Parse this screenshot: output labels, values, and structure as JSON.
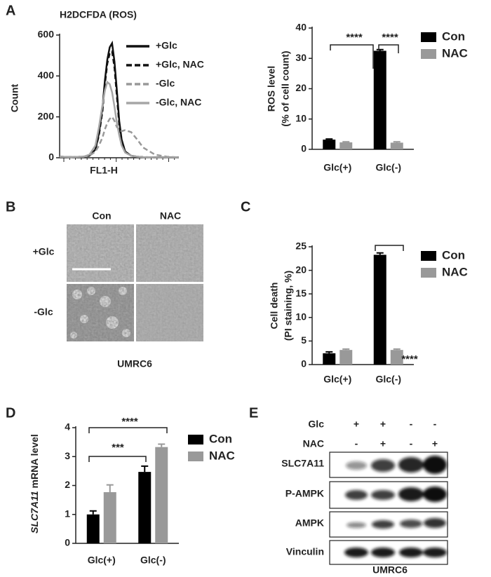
{
  "panel_labels": [
    "A",
    "B",
    "C",
    "D",
    "E"
  ],
  "chart_data": [
    {
      "type": "line",
      "title": "H2DCFDA (ROS)",
      "xlabel": "FL1-H",
      "ylabel": "Count",
      "xlim": [
        0,
        100
      ],
      "ylim": [
        0,
        600
      ],
      "yticks": [
        0,
        200,
        400,
        600
      ],
      "x": [
        0,
        10,
        20,
        25,
        30,
        33,
        36,
        38,
        40,
        42,
        44,
        46,
        48,
        50,
        52,
        55,
        60,
        65,
        70,
        80,
        90,
        100
      ],
      "series": [
        {
          "name": "+Glc",
          "color": "#111111",
          "dash": false,
          "values": [
            5,
            3,
            5,
            10,
            40,
            120,
            250,
            380,
            480,
            540,
            560,
            470,
            330,
            180,
            90,
            30,
            10,
            5,
            3,
            2,
            2,
            2
          ]
        },
        {
          "name": "+Glc, NAC",
          "color": "#111111",
          "dash": true,
          "values": [
            5,
            3,
            5,
            10,
            40,
            110,
            230,
            360,
            460,
            510,
            520,
            440,
            300,
            160,
            80,
            30,
            10,
            5,
            3,
            2,
            2,
            2
          ]
        },
        {
          "name": "-Glc",
          "color": "#999999",
          "dash": true,
          "values": [
            5,
            3,
            5,
            10,
            30,
            60,
            100,
            140,
            170,
            190,
            200,
            180,
            150,
            140,
            130,
            135,
            125,
            90,
            50,
            15,
            5,
            2
          ]
        },
        {
          "name": "-Glc, NAC",
          "color": "#a6a6a6",
          "dash": false,
          "values": [
            5,
            3,
            5,
            15,
            60,
            150,
            260,
            330,
            370,
            360,
            320,
            250,
            170,
            110,
            60,
            25,
            10,
            5,
            3,
            2,
            2,
            2
          ]
        }
      ],
      "legend": "inside-right"
    },
    {
      "type": "bar",
      "ylabel": [
        "ROS level",
        "(% of cell count)"
      ],
      "categories": [
        "Glc(+)",
        "Glc(-)"
      ],
      "ylim": [
        0,
        40
      ],
      "yticks": [
        0,
        10,
        20,
        30,
        40
      ],
      "series": [
        {
          "name": "Con",
          "color": "#000000",
          "values": [
            3.2,
            32.5
          ],
          "errors": [
            0.2,
            0.4
          ]
        },
        {
          "name": "NAC",
          "color": "#999999",
          "values": [
            2.3,
            2.2
          ],
          "errors": [
            0.2,
            0.3
          ]
        }
      ],
      "annotations": [
        "****",
        "****"
      ],
      "legend": "right"
    },
    {
      "type": "bar",
      "ylabel": [
        "Cell death",
        "(PI staining, %)"
      ],
      "categories": [
        "Glc(+)",
        "Glc(-)"
      ],
      "ylim": [
        0,
        25
      ],
      "yticks": [
        0,
        5,
        10,
        15,
        20,
        25
      ],
      "series": [
        {
          "name": "Con",
          "color": "#000000",
          "values": [
            2.4,
            23.3
          ],
          "errors": [
            0.3,
            0.4
          ]
        },
        {
          "name": "NAC",
          "color": "#999999",
          "values": [
            3.1,
            3.1
          ],
          "errors": [
            0.2,
            0.2
          ]
        }
      ],
      "annotations": [
        "****"
      ],
      "legend": "right"
    },
    {
      "type": "bar",
      "ylabel": [
        "SLC7A11",
        "mRNA level"
      ],
      "categories": [
        "Glc(+)",
        "Glc(-)"
      ],
      "ylim": [
        0,
        4
      ],
      "yticks": [
        0,
        1,
        2,
        3,
        4
      ],
      "series": [
        {
          "name": "Con",
          "color": "#000000",
          "values": [
            1.0,
            2.47
          ],
          "errors": [
            0.12,
            0.2
          ]
        },
        {
          "name": "NAC",
          "color": "#999999",
          "values": [
            1.77,
            3.33
          ],
          "errors": [
            0.25,
            0.1
          ]
        }
      ],
      "annotations": [
        "***",
        "****"
      ],
      "legend": "right"
    }
  ],
  "microscopy": {
    "columns": [
      "Con",
      "NAC"
    ],
    "rows": [
      "+Glc",
      "-Glc"
    ],
    "caption": "UMRC6"
  },
  "western_blot": {
    "conditions": [
      {
        "name": "Glc",
        "signs": [
          "+",
          "+",
          "-",
          "-"
        ]
      },
      {
        "name": "NAC",
        "signs": [
          "-",
          "+",
          "-",
          "+"
        ]
      }
    ],
    "proteins": [
      "SLC7A11",
      "P-AMPK",
      "AMPK",
      "Vinculin"
    ],
    "caption": "UMRC6"
  }
}
